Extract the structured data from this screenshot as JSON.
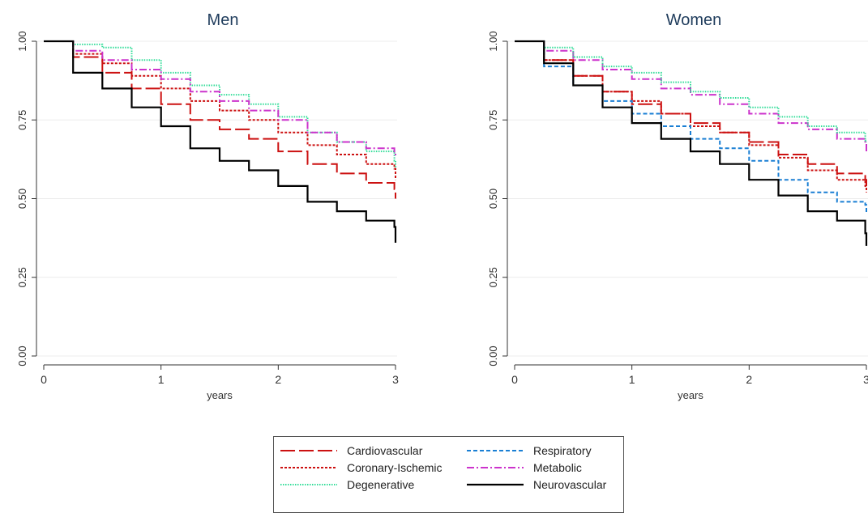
{
  "chart_data": [
    {
      "type": "line",
      "title": "Men",
      "xlabel": "years",
      "ylabel": "",
      "xlim": [
        0,
        3
      ],
      "ylim": [
        0,
        1
      ],
      "xticks": [
        "0",
        "1",
        "2",
        "3"
      ],
      "yticks": [
        "0.00",
        "0.25",
        "0.50",
        "0.75",
        "1.00"
      ],
      "grid": true,
      "series": [
        {
          "name": "Cardiovascular",
          "color": "#cc1111",
          "dash": "long",
          "x": [
            0,
            0.25,
            0.5,
            0.75,
            1.0,
            1.25,
            1.5,
            1.75,
            2.0,
            2.25,
            2.5,
            2.75,
            2.99,
            3.0
          ],
          "y": [
            1.0,
            0.95,
            0.9,
            0.85,
            0.8,
            0.75,
            0.72,
            0.69,
            0.65,
            0.61,
            0.58,
            0.55,
            0.53,
            0.5
          ]
        },
        {
          "name": "Coronary-Ischemic",
          "color": "#cc1111",
          "dash": "dot",
          "x": [
            0,
            0.25,
            0.5,
            0.75,
            1.0,
            1.25,
            1.5,
            1.75,
            2.0,
            2.25,
            2.5,
            2.75,
            2.99,
            3.0
          ],
          "y": [
            1.0,
            0.96,
            0.93,
            0.89,
            0.85,
            0.81,
            0.78,
            0.75,
            0.71,
            0.67,
            0.64,
            0.61,
            0.595,
            0.56
          ]
        },
        {
          "name": "Degenerative",
          "color": "#33dd99",
          "dash": "fine",
          "x": [
            0,
            0.25,
            0.5,
            0.75,
            1.0,
            1.25,
            1.5,
            1.75,
            2.0,
            2.25,
            2.5,
            2.75,
            2.99,
            3.0
          ],
          "y": [
            1.0,
            0.99,
            0.98,
            0.94,
            0.9,
            0.86,
            0.83,
            0.8,
            0.76,
            0.71,
            0.68,
            0.65,
            0.62,
            0.6
          ]
        },
        {
          "name": "Metabolic",
          "color": "#cc33cc",
          "dash": "dashdot",
          "x": [
            0,
            0.25,
            0.5,
            0.75,
            1.0,
            1.25,
            1.5,
            1.75,
            2.0,
            2.25,
            2.5,
            2.75,
            2.99,
            3.0
          ],
          "y": [
            1.0,
            0.97,
            0.94,
            0.91,
            0.88,
            0.84,
            0.81,
            0.78,
            0.75,
            0.71,
            0.68,
            0.66,
            0.645,
            0.63
          ]
        },
        {
          "name": "Neurovascular",
          "color": "#000000",
          "dash": "solid",
          "x": [
            0,
            0.25,
            0.5,
            0.75,
            1.0,
            1.25,
            1.5,
            1.75,
            2.0,
            2.25,
            2.5,
            2.75,
            2.99,
            3.0
          ],
          "y": [
            1.0,
            0.9,
            0.85,
            0.79,
            0.73,
            0.66,
            0.62,
            0.59,
            0.54,
            0.49,
            0.46,
            0.43,
            0.41,
            0.36
          ]
        }
      ]
    },
    {
      "type": "line",
      "title": "Women",
      "xlabel": "years",
      "ylabel": "",
      "xlim": [
        0,
        3
      ],
      "ylim": [
        0,
        1
      ],
      "xticks": [
        "0",
        "1",
        "2",
        "3"
      ],
      "yticks": [
        "0.00",
        "0.25",
        "0.50",
        "0.75",
        "1.00"
      ],
      "grid": true,
      "series": [
        {
          "name": "Cardiovascular",
          "color": "#cc1111",
          "dash": "long",
          "x": [
            0,
            0.25,
            0.5,
            0.75,
            1.0,
            1.25,
            1.5,
            1.75,
            2.0,
            2.25,
            2.5,
            2.75,
            2.99,
            3.0
          ],
          "y": [
            1.0,
            0.94,
            0.89,
            0.84,
            0.8,
            0.77,
            0.74,
            0.71,
            0.68,
            0.64,
            0.61,
            0.58,
            0.56,
            0.54
          ]
        },
        {
          "name": "Coronary-Ischemic",
          "color": "#cc1111",
          "dash": "dot",
          "x": [
            0,
            0.25,
            0.5,
            0.75,
            1.0,
            1.25,
            1.5,
            1.75,
            2.0,
            2.25,
            2.5,
            2.75,
            2.99,
            3.0
          ],
          "y": [
            1.0,
            0.94,
            0.89,
            0.84,
            0.81,
            0.77,
            0.73,
            0.71,
            0.67,
            0.63,
            0.59,
            0.56,
            0.54,
            0.52
          ]
        },
        {
          "name": "Respiratory",
          "color": "#1a7fd4",
          "dash": "short",
          "x": [
            0,
            0.25,
            0.5,
            0.75,
            1.0,
            1.25,
            1.5,
            1.75,
            2.0,
            2.25,
            2.5,
            2.75,
            2.99,
            3.0
          ],
          "y": [
            1.0,
            0.92,
            0.86,
            0.81,
            0.77,
            0.73,
            0.69,
            0.66,
            0.62,
            0.56,
            0.52,
            0.49,
            0.48,
            0.45
          ]
        },
        {
          "name": "Metabolic",
          "color": "#cc33cc",
          "dash": "dashdot",
          "x": [
            0,
            0.25,
            0.5,
            0.75,
            1.0,
            1.25,
            1.5,
            1.75,
            2.0,
            2.25,
            2.5,
            2.75,
            2.99,
            3.0
          ],
          "y": [
            1.0,
            0.97,
            0.94,
            0.91,
            0.88,
            0.85,
            0.83,
            0.8,
            0.77,
            0.74,
            0.72,
            0.69,
            0.675,
            0.65
          ]
        },
        {
          "name": "Degenerative",
          "color": "#33dd99",
          "dash": "fine",
          "x": [
            0,
            0.25,
            0.5,
            0.75,
            1.0,
            1.25,
            1.5,
            1.75,
            2.0,
            2.25,
            2.5,
            2.75,
            2.99,
            3.0
          ],
          "y": [
            1.0,
            0.98,
            0.95,
            0.92,
            0.9,
            0.87,
            0.84,
            0.82,
            0.79,
            0.76,
            0.73,
            0.71,
            0.685,
            0.68
          ]
        },
        {
          "name": "Neurovascular",
          "color": "#000000",
          "dash": "solid",
          "x": [
            0,
            0.25,
            0.5,
            0.75,
            1.0,
            1.25,
            1.5,
            1.75,
            2.0,
            2.25,
            2.5,
            2.75,
            2.99,
            3.0
          ],
          "y": [
            1.0,
            0.93,
            0.86,
            0.79,
            0.74,
            0.69,
            0.65,
            0.61,
            0.56,
            0.51,
            0.46,
            0.43,
            0.39,
            0.35
          ]
        }
      ]
    }
  ],
  "legend": {
    "placement": "bottom-center",
    "items": [
      {
        "label": "Cardiovascular",
        "color": "#cc1111",
        "dash": "long"
      },
      {
        "label": "Respiratory",
        "color": "#1a7fd4",
        "dash": "short"
      },
      {
        "label": "Coronary-Ischemic",
        "color": "#cc1111",
        "dash": "dot"
      },
      {
        "label": "Metabolic",
        "color": "#cc33cc",
        "dash": "dashdot"
      },
      {
        "label": "Degenerative",
        "color": "#33dd99",
        "dash": "fine"
      },
      {
        "label": "Neurovascular",
        "color": "#000000",
        "dash": "solid"
      }
    ]
  }
}
